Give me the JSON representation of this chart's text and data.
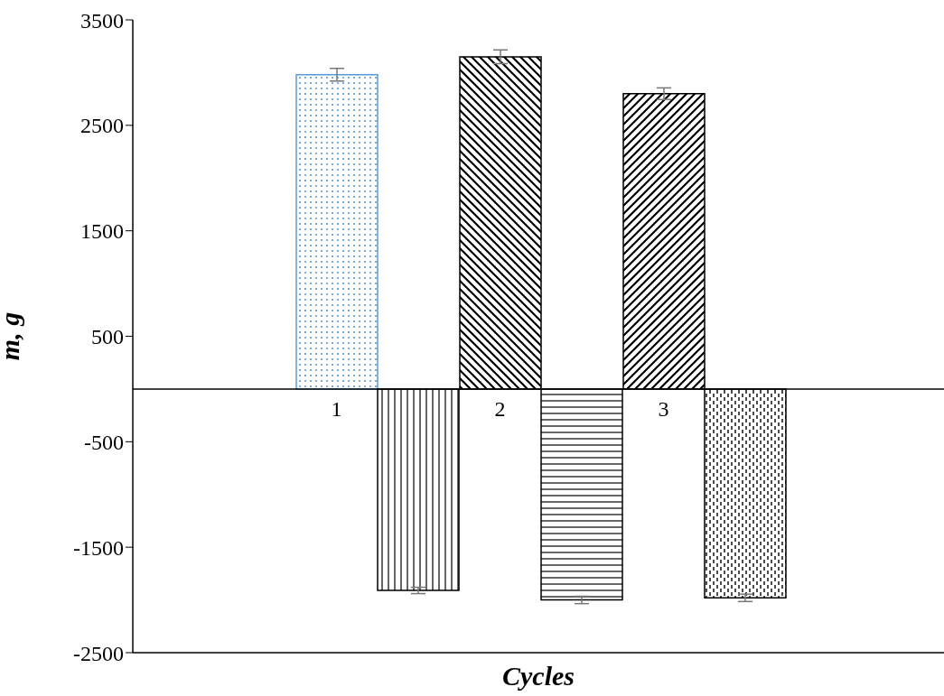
{
  "chart_data": {
    "type": "bar",
    "xlabel": "Cycles",
    "ylabel": "m, g",
    "categories": [
      "1",
      "2",
      "3"
    ],
    "series": [
      {
        "values": [
          2980,
          3150,
          2800
        ],
        "errors": [
          60,
          65,
          55
        ],
        "colors": [
          "#5b9bd5",
          "#000000",
          "#000000"
        ]
      },
      {
        "values": [
          -1910,
          -2000,
          -1980
        ],
        "errors": [
          30,
          35,
          35
        ],
        "colors": [
          "#000000",
          "#000000",
          "#000000"
        ]
      }
    ],
    "ylim": [
      -2500,
      3500
    ],
    "yticks": [
      -2500,
      -1500,
      -500,
      500,
      1500,
      2500,
      3500
    ],
    "grid": false,
    "legend": false
  }
}
